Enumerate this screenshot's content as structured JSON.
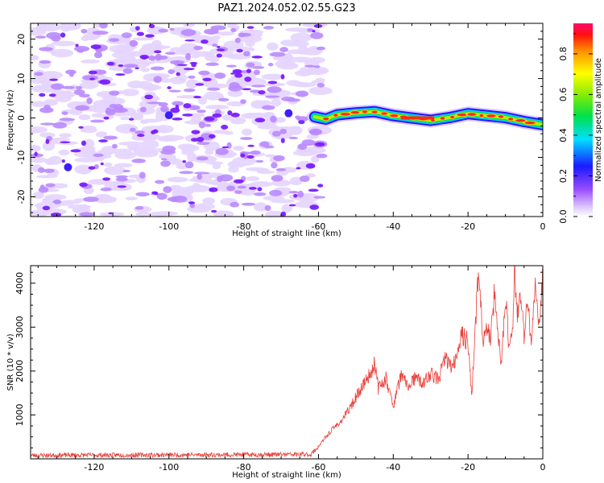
{
  "title": "PAZ1.2024.052.02.55.G23",
  "chart_data": [
    {
      "type": "heatmap",
      "xlabel": "Height of straight line (km)",
      "ylabel": "Frequency (Hz)",
      "xlim": [
        -137,
        0
      ],
      "ylim": [
        -25,
        24
      ],
      "xticks": [
        -120,
        -100,
        -80,
        -60,
        -40,
        -20,
        0
      ],
      "yticks": [
        -20,
        -10,
        0,
        10,
        20
      ],
      "noise_region_x": [
        -136,
        -59
      ],
      "signal_track": {
        "x": [
          -61,
          -58,
          -55,
          -50,
          -45,
          -40,
          -35,
          -30,
          -25,
          -20,
          -15,
          -10,
          -5,
          0
        ],
        "frequency": [
          0.3,
          -0.3,
          0.8,
          1.3,
          1.6,
          0.6,
          0.0,
          -0.6,
          0.1,
          1.1,
          0.6,
          0.1,
          -0.9,
          -1.7
        ]
      },
      "colorbar": {
        "label": "Normalized spectral amplitude",
        "range": [
          0.0,
          0.95
        ],
        "ticks": [
          0.0,
          0.2,
          0.4,
          0.6,
          0.8
        ],
        "tick_labels": [
          "0.0",
          "0.2",
          "0.4",
          "0.6",
          "0.8"
        ]
      }
    },
    {
      "type": "line",
      "xlabel": "Height of straight line (km)",
      "ylabel": "SNR (10 * v/v)",
      "xlim": [
        -137,
        0
      ],
      "ylim": [
        0,
        4400
      ],
      "xticks": [
        -120,
        -100,
        -80,
        -60,
        -40,
        -20,
        0
      ],
      "yticks": [
        1000,
        2000,
        3000,
        4000
      ],
      "series": [
        {
          "color": "#e8403a",
          "x": [
            -137,
            -120,
            -100,
            -80,
            -62,
            -60,
            -58,
            -56,
            -54,
            -52,
            -50,
            -48,
            -46,
            -45,
            -44,
            -42,
            -40,
            -38,
            -36,
            -34,
            -32,
            -30,
            -28,
            -26,
            -24,
            -22,
            -20,
            -19,
            -18,
            -17.5,
            -17,
            -16,
            -15,
            -14,
            -13,
            -12,
            -11,
            -10,
            -9,
            -8,
            -7.5,
            -7,
            -6,
            -5,
            -4,
            -3,
            -2,
            -1,
            0
          ],
          "values": [
            80,
            85,
            90,
            95,
            100,
            280,
            500,
            700,
            850,
            1100,
            1400,
            1700,
            1950,
            2200,
            1600,
            1850,
            1200,
            1900,
            1650,
            1850,
            1700,
            1950,
            1800,
            2300,
            2050,
            2800,
            2700,
            1400,
            3100,
            3800,
            4350,
            2600,
            3000,
            2700,
            3700,
            2900,
            2100,
            3800,
            2500,
            3200,
            4400,
            3300,
            3700,
            2800,
            3600,
            2600,
            3900,
            3100,
            4100
          ]
        }
      ]
    }
  ]
}
